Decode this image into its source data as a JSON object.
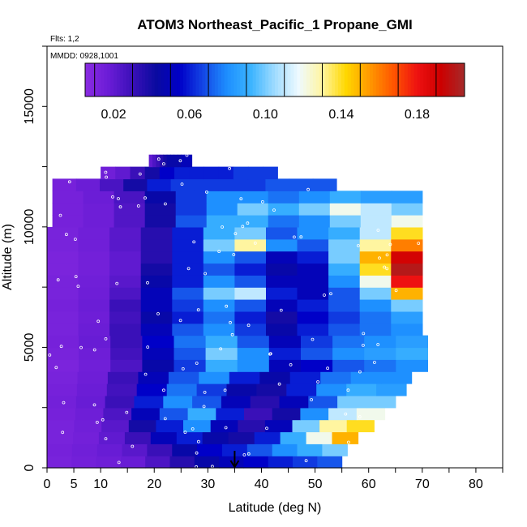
{
  "chart_data": {
    "type": "heatmap",
    "title": "ATOM3 Northeast_Pacific_1 Propane_GMI",
    "flights_label": "Flts: 1,2",
    "date_label": "MMDD: 0928,1001",
    "xlabel": "Latitude (deg N)",
    "ylabel": "Altitude (m)",
    "xlim": [
      0,
      85
    ],
    "ylim": [
      0,
      17500
    ],
    "x_ticks": [
      0,
      5,
      10,
      20,
      30,
      40,
      50,
      60,
      70,
      80
    ],
    "x_tick_labels": [
      "0",
      "5",
      "10",
      "20",
      "30",
      "40",
      "50",
      "60",
      "70",
      "80"
    ],
    "y_ticks": [
      0,
      5000,
      10000,
      15000
    ],
    "y_tick_labels": [
      "0",
      "5000",
      "10000",
      "15000"
    ],
    "colorbar": {
      "min": 0.005,
      "max": 0.205,
      "ticks": [
        0.02,
        0.06,
        0.1,
        0.14,
        0.18
      ],
      "tick_labels": [
        "0.02",
        "0.06",
        "0.10",
        "0.14",
        "0.18"
      ],
      "colors": [
        "#8a2be2",
        "#6a1cd6",
        "#3a10b8",
        "#0a0aa0",
        "#0000c8",
        "#1448e6",
        "#1e90ff",
        "#3cb4ff",
        "#a0dcff",
        "#eefaff",
        "#fff5a0",
        "#ffd700",
        "#ff9900",
        "#ff5500",
        "#ee1111",
        "#cc0000",
        "#a52a2a"
      ]
    },
    "flight_track_marker": {
      "latitude": 35,
      "label": "arrow"
    },
    "grid_rows": {
      "altitude_edges": [
        0,
        500,
        1000,
        1500,
        2000,
        2500,
        3000,
        3500,
        4000,
        4500,
        5000,
        5500,
        6000,
        6500,
        7000,
        7500,
        8000,
        8500,
        9000,
        9500,
        10000,
        10500,
        11000,
        11500,
        12000,
        12500,
        13000
      ],
      "rows": [
        {
          "lat": [
            0,
            55
          ],
          "values": [
            0.012,
            0.014,
            0.016,
            0.018,
            0.025,
            0.035,
            0.045,
            0.05,
            0.055,
            0.06,
            0.065,
            0.07
          ]
        },
        {
          "lat": [
            0,
            56
          ],
          "values": [
            0.013,
            0.015,
            0.018,
            0.022,
            0.03,
            0.045,
            0.055,
            0.06,
            0.07,
            0.08,
            0.09,
            0.1
          ]
        },
        {
          "lat": [
            0,
            58
          ],
          "values": [
            0.012,
            0.014,
            0.02,
            0.03,
            0.05,
            0.06,
            0.045,
            0.04,
            0.06,
            0.09,
            0.12,
            0.15
          ]
        },
        {
          "lat": [
            0,
            61
          ],
          "values": [
            0.012,
            0.015,
            0.022,
            0.04,
            0.06,
            0.08,
            0.05,
            0.035,
            0.05,
            0.1,
            0.13,
            0.14
          ]
        },
        {
          "lat": [
            0,
            63
          ],
          "values": [
            0.013,
            0.016,
            0.025,
            0.05,
            0.07,
            0.09,
            0.06,
            0.03,
            0.04,
            0.08,
            0.11,
            0.12
          ]
        },
        {
          "lat": [
            0,
            65
          ],
          "values": [
            0.014,
            0.018,
            0.03,
            0.06,
            0.08,
            0.07,
            0.05,
            0.035,
            0.05,
            0.07,
            0.1,
            0.1
          ]
        },
        {
          "lat": [
            0,
            67
          ],
          "values": [
            0.013,
            0.017,
            0.028,
            0.055,
            0.075,
            0.065,
            0.045,
            0.04,
            0.06,
            0.08,
            0.09,
            0.085
          ]
        },
        {
          "lat": [
            0,
            68
          ],
          "values": [
            0.012,
            0.016,
            0.03,
            0.05,
            0.07,
            0.08,
            0.06,
            0.045,
            0.06,
            0.075,
            0.08,
            0.08
          ]
        },
        {
          "lat": [
            0,
            71
          ],
          "values": [
            0.011,
            0.015,
            0.025,
            0.045,
            0.065,
            0.09,
            0.08,
            0.05,
            0.055,
            0.07,
            0.075,
            0.08
          ]
        },
        {
          "lat": [
            0,
            71
          ],
          "values": [
            0.012,
            0.016,
            0.028,
            0.05,
            0.07,
            0.1,
            0.08,
            0.06,
            0.07,
            0.08,
            0.085,
            0.09
          ]
        },
        {
          "lat": [
            0,
            71
          ],
          "values": [
            0.013,
            0.018,
            0.03,
            0.055,
            0.075,
            0.09,
            0.07,
            0.05,
            0.065,
            0.075,
            0.08,
            0.085
          ]
        },
        {
          "lat": [
            0,
            70
          ],
          "values": [
            0.012,
            0.017,
            0.03,
            0.05,
            0.07,
            0.08,
            0.065,
            0.045,
            0.06,
            0.07,
            0.075,
            0.08
          ]
        },
        {
          "lat": [
            0,
            70
          ],
          "values": [
            0.012,
            0.016,
            0.028,
            0.045,
            0.06,
            0.075,
            0.06,
            0.04,
            0.055,
            0.065,
            0.075,
            0.085
          ]
        },
        {
          "lat": [
            0,
            70
          ],
          "values": [
            0.013,
            0.017,
            0.03,
            0.05,
            0.065,
            0.08,
            0.07,
            0.05,
            0.06,
            0.07,
            0.08,
            0.1
          ]
        },
        {
          "lat": [
            0,
            70
          ],
          "values": [
            0.012,
            0.016,
            0.025,
            0.05,
            0.07,
            0.1,
            0.11,
            0.06,
            0.05,
            0.07,
            0.1,
            0.15
          ]
        },
        {
          "lat": [
            0,
            70
          ],
          "values": [
            0.012,
            0.015,
            0.022,
            0.045,
            0.06,
            0.08,
            0.07,
            0.05,
            0.05,
            0.08,
            0.12,
            0.18
          ]
        },
        {
          "lat": [
            0,
            70
          ],
          "values": [
            0.011,
            0.014,
            0.02,
            0.04,
            0.06,
            0.07,
            0.06,
            0.045,
            0.05,
            0.09,
            0.14,
            0.2
          ]
        },
        {
          "lat": [
            0,
            70
          ],
          "values": [
            0.011,
            0.014,
            0.02,
            0.035,
            0.06,
            0.08,
            0.07,
            0.05,
            0.06,
            0.1,
            0.15,
            0.19
          ]
        },
        {
          "lat": [
            0,
            70
          ],
          "values": [
            0.012,
            0.015,
            0.022,
            0.035,
            0.06,
            0.1,
            0.13,
            0.08,
            0.07,
            0.1,
            0.13,
            0.16
          ]
        },
        {
          "lat": [
            0,
            70
          ],
          "values": [
            0.012,
            0.015,
            0.022,
            0.035,
            0.06,
            0.09,
            0.1,
            0.07,
            0.08,
            0.09,
            0.11,
            0.14
          ]
        },
        {
          "lat": [
            1,
            70
          ],
          "values": [
            0.013,
            0.016,
            0.024,
            0.04,
            0.07,
            0.09,
            0.09,
            0.075,
            0.08,
            0.1,
            0.11,
            0.12
          ]
        },
        {
          "lat": [
            1,
            70
          ],
          "values": [
            0.013,
            0.016,
            0.024,
            0.04,
            0.065,
            0.08,
            0.1,
            0.09,
            0.1,
            0.12,
            0.11,
            0.1
          ]
        },
        {
          "lat": [
            1,
            70
          ],
          "values": [
            0.013,
            0.017,
            0.026,
            0.045,
            0.065,
            0.08,
            0.08,
            0.075,
            0.08,
            0.09,
            0.085,
            0.085
          ]
        },
        {
          "lat": [
            1,
            54
          ],
          "values": [
            0.013,
            0.017,
            0.026,
            0.04,
            0.06,
            0.065,
            0.065,
            0.065,
            0.065,
            0.07,
            0.07,
            0.07
          ]
        },
        {
          "lat": [
            10,
            43
          ],
          "values": [
            0.015,
            0.02,
            0.03,
            0.04,
            0.055,
            0.06,
            0.06,
            0.06,
            0.06,
            0.065,
            0.065,
            0.065
          ]
        },
        {
          "lat": [
            19,
            27
          ],
          "values": [
            0.02,
            0.025,
            0.03,
            0.035,
            0.04,
            0.045,
            0.045,
            0.045,
            0.045,
            0.05,
            0.05,
            0.05
          ]
        }
      ]
    }
  }
}
